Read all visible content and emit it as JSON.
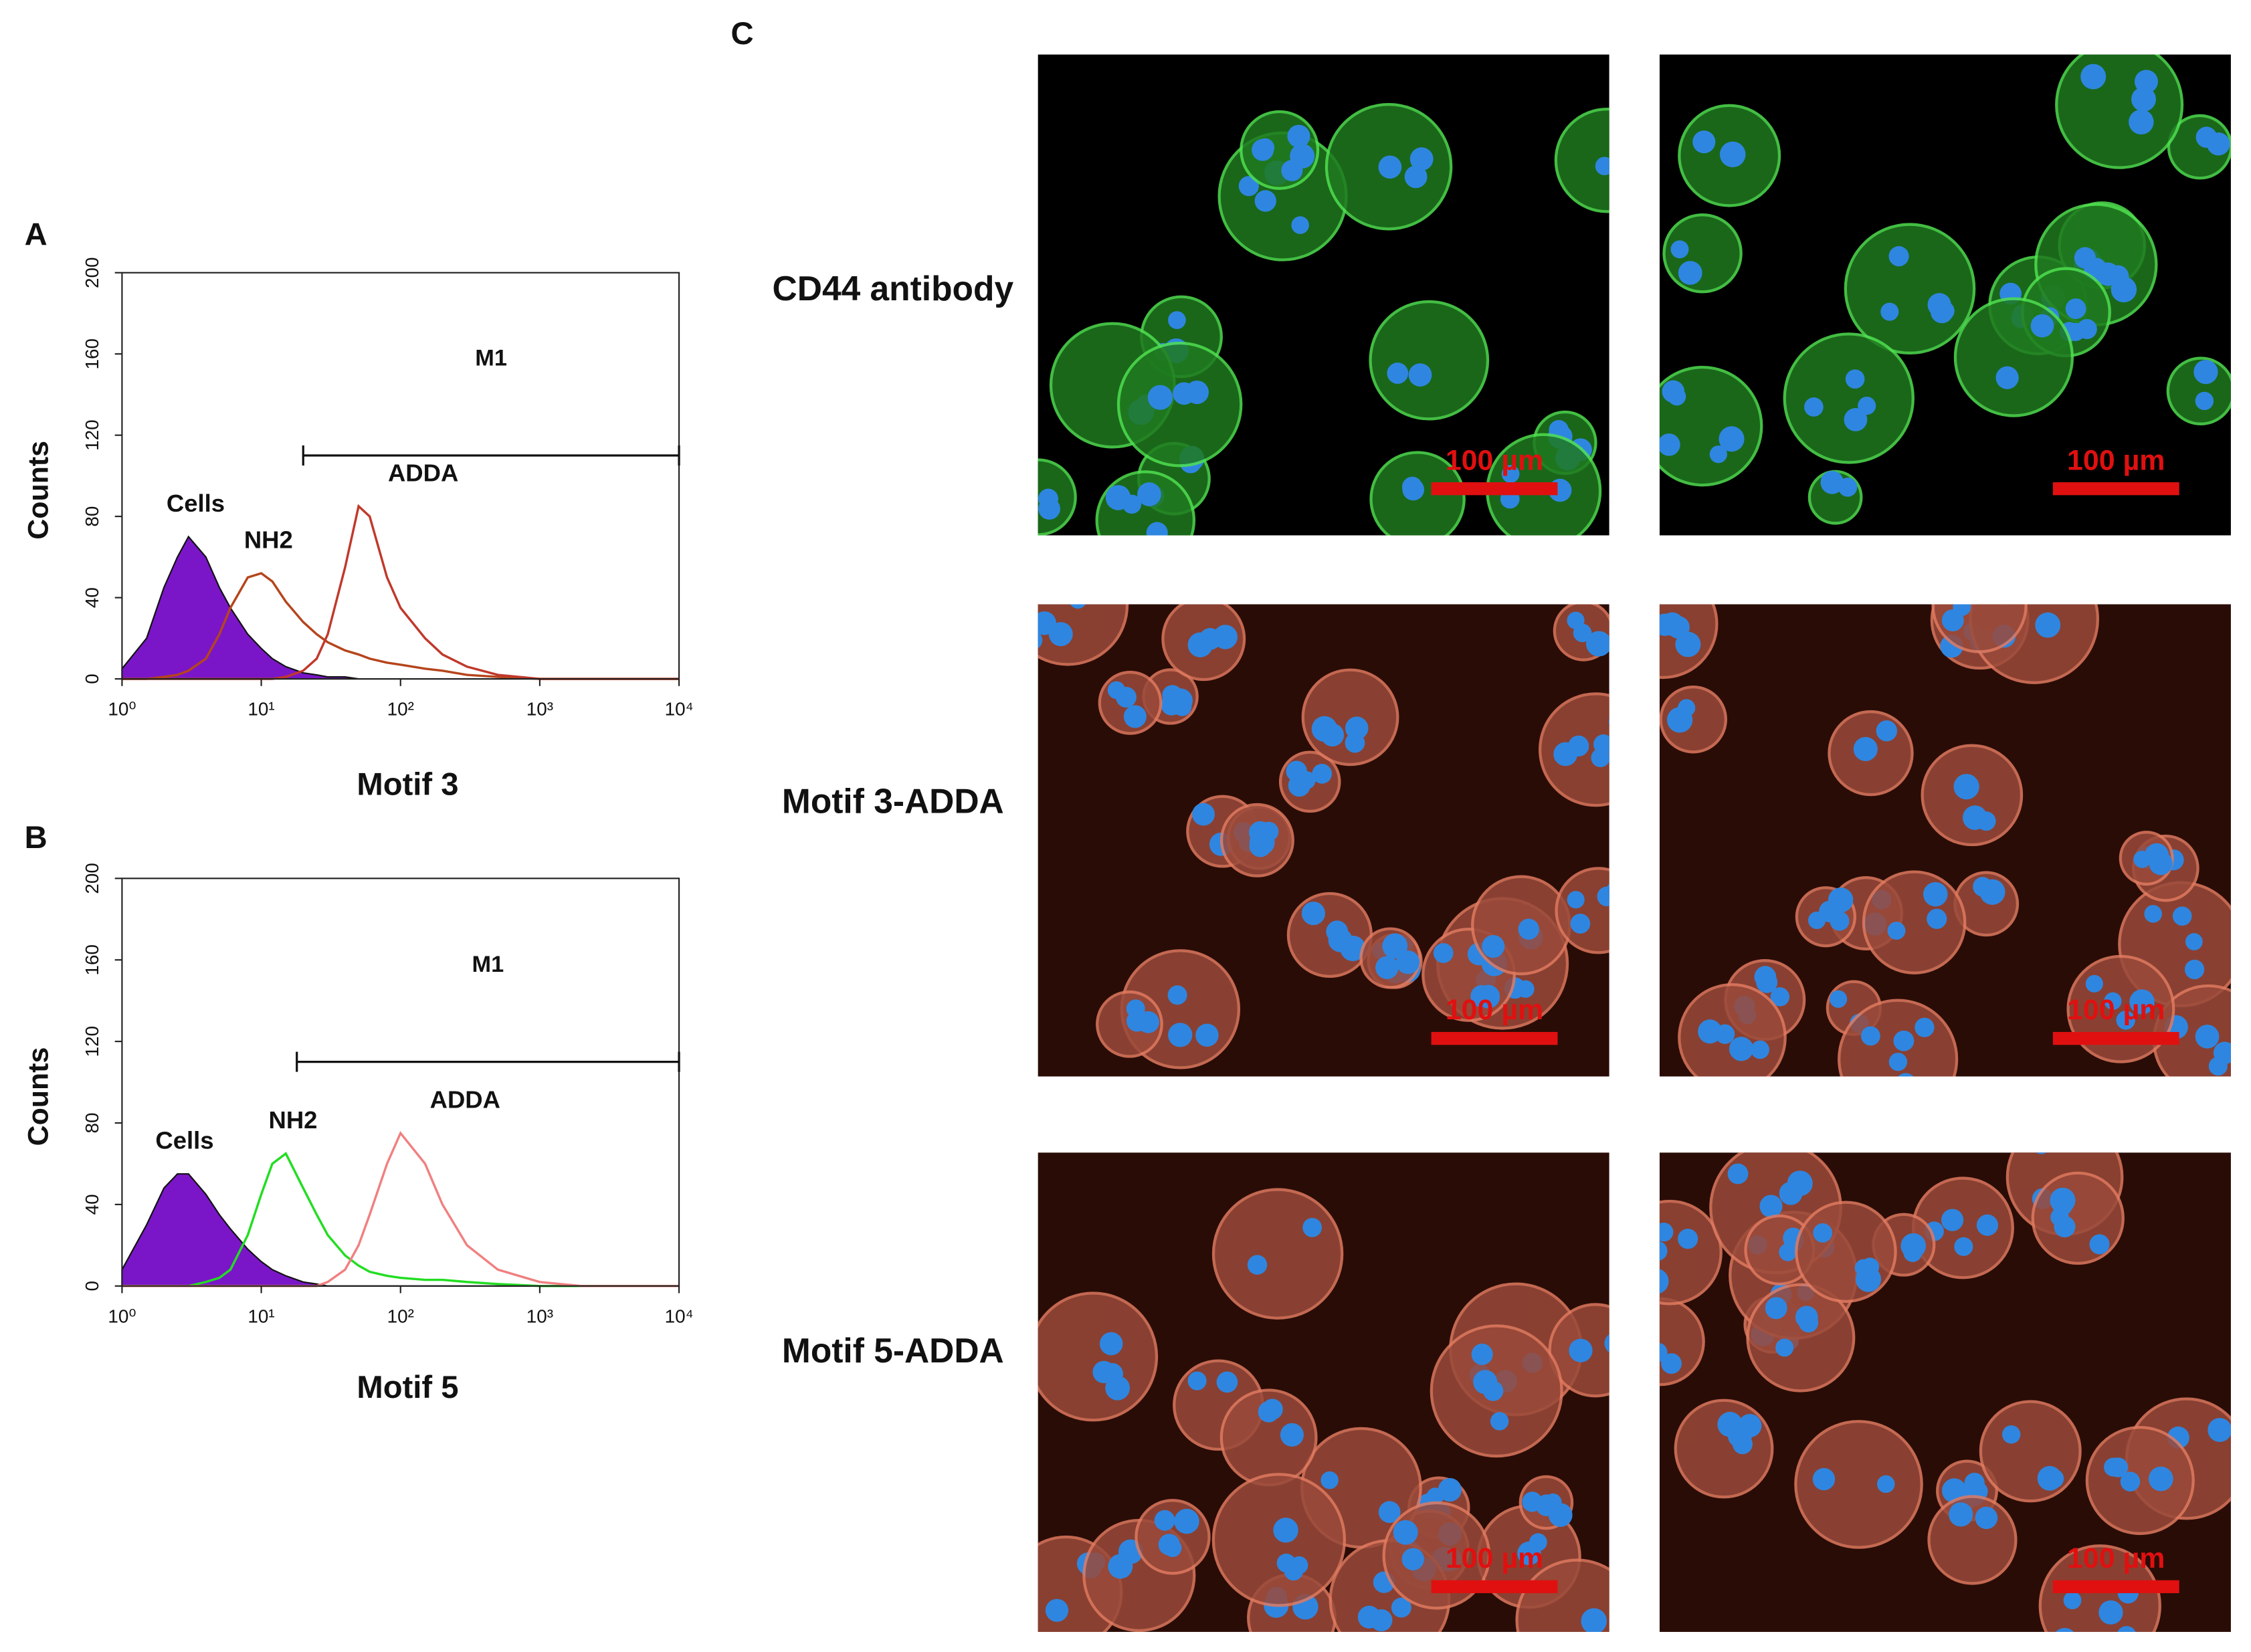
{
  "chart_data": [
    {
      "type": "histogram",
      "panel": "A",
      "xlabel": "Motif 3",
      "ylabel": "Counts",
      "log_x": true,
      "xlim": [
        1,
        10000
      ],
      "ylim": [
        0,
        200
      ],
      "xticks": [
        {
          "value": 1,
          "label": "10⁰"
        },
        {
          "value": 10,
          "label": "10¹"
        },
        {
          "value": 100,
          "label": "10²"
        },
        {
          "value": 1000,
          "label": "10³"
        },
        {
          "value": 10000,
          "label": "10⁴"
        }
      ],
      "yticks": [
        0,
        40,
        80,
        120,
        160,
        200
      ],
      "gate": {
        "label": "M1",
        "range": [
          20,
          10000
        ],
        "y": 110
      },
      "x": [
        1,
        1.5,
        2,
        2.5,
        3,
        4,
        5,
        6,
        8,
        10,
        12,
        15,
        20,
        25,
        30,
        40,
        50,
        60,
        80,
        100,
        150,
        200,
        300,
        500,
        1000,
        2000,
        5000,
        10000
      ],
      "series": [
        {
          "name": "Cells",
          "color": "#7a16c8",
          "filled": true,
          "values": [
            5,
            20,
            45,
            60,
            70,
            60,
            45,
            35,
            22,
            15,
            10,
            6,
            3,
            2,
            1,
            1,
            0,
            0,
            0,
            0,
            0,
            0,
            0,
            0,
            0,
            0,
            0,
            0
          ]
        },
        {
          "name": "NH2",
          "color": "#b5451b",
          "filled": false,
          "values": [
            0,
            0,
            1,
            2,
            4,
            10,
            22,
            35,
            50,
            52,
            48,
            38,
            28,
            22,
            18,
            14,
            12,
            10,
            8,
            7,
            5,
            4,
            2,
            1,
            0,
            0,
            0,
            0
          ]
        },
        {
          "name": "ADDA",
          "color": "#c0392b",
          "filled": false,
          "values": [
            0,
            0,
            0,
            0,
            0,
            0,
            0,
            0,
            0,
            0,
            0,
            1,
            4,
            10,
            22,
            55,
            85,
            80,
            50,
            35,
            20,
            12,
            6,
            2,
            0,
            0,
            0,
            0
          ]
        }
      ]
    },
    {
      "type": "histogram",
      "panel": "B",
      "xlabel": "Motif 5",
      "ylabel": "Counts",
      "log_x": true,
      "xlim": [
        1,
        10000
      ],
      "ylim": [
        0,
        200
      ],
      "xticks": [
        {
          "value": 1,
          "label": "10⁰"
        },
        {
          "value": 10,
          "label": "10¹"
        },
        {
          "value": 100,
          "label": "10²"
        },
        {
          "value": 1000,
          "label": "10³"
        },
        {
          "value": 10000,
          "label": "10⁴"
        }
      ],
      "yticks": [
        0,
        40,
        80,
        120,
        160,
        200
      ],
      "gate": {
        "label": "M1",
        "range": [
          18,
          10000
        ],
        "y": 110
      },
      "x": [
        1,
        1.5,
        2,
        2.5,
        3,
        4,
        5,
        6,
        8,
        10,
        12,
        15,
        20,
        25,
        30,
        40,
        50,
        60,
        80,
        100,
        150,
        200,
        300,
        500,
        1000,
        2000,
        5000,
        10000
      ],
      "series": [
        {
          "name": "Cells",
          "color": "#7a16c8",
          "filled": true,
          "values": [
            8,
            30,
            48,
            55,
            55,
            45,
            35,
            28,
            18,
            12,
            8,
            5,
            2,
            1,
            0,
            0,
            0,
            0,
            0,
            0,
            0,
            0,
            0,
            0,
            0,
            0,
            0,
            0
          ]
        },
        {
          "name": "NH2",
          "color": "#22dd22",
          "filled": false,
          "values": [
            0,
            0,
            0,
            0,
            0,
            2,
            4,
            8,
            25,
            45,
            60,
            65,
            48,
            35,
            25,
            15,
            10,
            7,
            5,
            4,
            3,
            3,
            2,
            1,
            0,
            0,
            0,
            0
          ]
        },
        {
          "name": "ADDA",
          "color": "#f08080",
          "filled": false,
          "values": [
            0,
            0,
            0,
            0,
            0,
            0,
            0,
            0,
            0,
            0,
            0,
            0,
            0,
            0,
            2,
            8,
            20,
            35,
            60,
            75,
            60,
            40,
            20,
            8,
            2,
            0,
            0,
            0
          ]
        }
      ]
    }
  ],
  "micrographs": {
    "panel": "C",
    "rows": [
      {
        "label": "CD44 antibody",
        "scale_bars": [
          "100 µm",
          "100 µm"
        ]
      },
      {
        "label": "Motif 3-ADDA",
        "scale_bars": [
          "100 µm",
          "100 µm"
        ]
      },
      {
        "label": "Motif 5-ADDA",
        "scale_bars": [
          "100 µm",
          "100 µm"
        ]
      }
    ]
  }
}
